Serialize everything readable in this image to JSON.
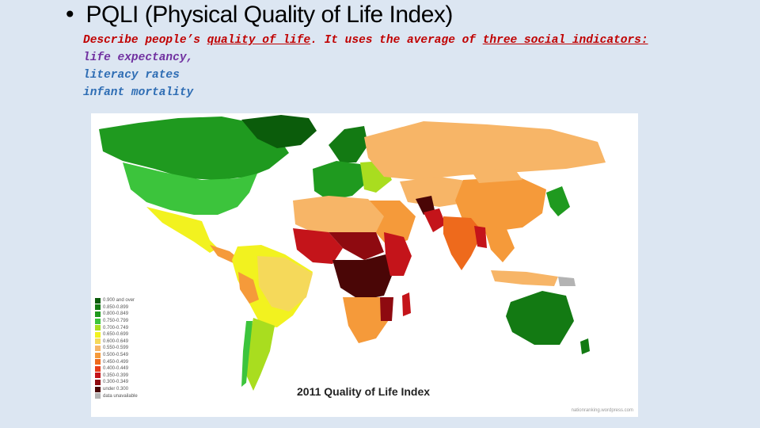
{
  "slide": {
    "bullet": "•",
    "title": "PQLI (Physical Quality of Life Index)",
    "description": {
      "part1": "Describe people’s ",
      "link1": "quality of life",
      "part2": ". It uses the average of ",
      "link2": "three social indicators:",
      "line2": "life expectancy,",
      "line3": "literacy rates",
      "line4": "infant mortality"
    }
  },
  "map": {
    "title": "2011 Quality of Life Index",
    "credit": "nationranking.wordpress.com",
    "legend": [
      {
        "label": "0.900 and over",
        "color": "#0b5c0b"
      },
      {
        "label": "0.850-0.899",
        "color": "#137a13"
      },
      {
        "label": "0.800-0.849",
        "color": "#1f9a1f"
      },
      {
        "label": "0.750-0.799",
        "color": "#3cc43c"
      },
      {
        "label": "0.700-0.749",
        "color": "#a9dd1f"
      },
      {
        "label": "0.650-0.699",
        "color": "#f2f21f"
      },
      {
        "label": "0.600-0.649",
        "color": "#f5d95a"
      },
      {
        "label": "0.550-0.599",
        "color": "#f7b567"
      },
      {
        "label": "0.500-0.549",
        "color": "#f59a3a"
      },
      {
        "label": "0.450-0.499",
        "color": "#ee6a1c"
      },
      {
        "label": "0.400-0.449",
        "color": "#e83b18"
      },
      {
        "label": "0.350-0.399",
        "color": "#c4141a"
      },
      {
        "label": "0.300-0.349",
        "color": "#8e0a10"
      },
      {
        "label": "under 0.300",
        "color": "#4a0606"
      },
      {
        "label": "data unavailable",
        "color": "#b3b3b3"
      }
    ]
  }
}
